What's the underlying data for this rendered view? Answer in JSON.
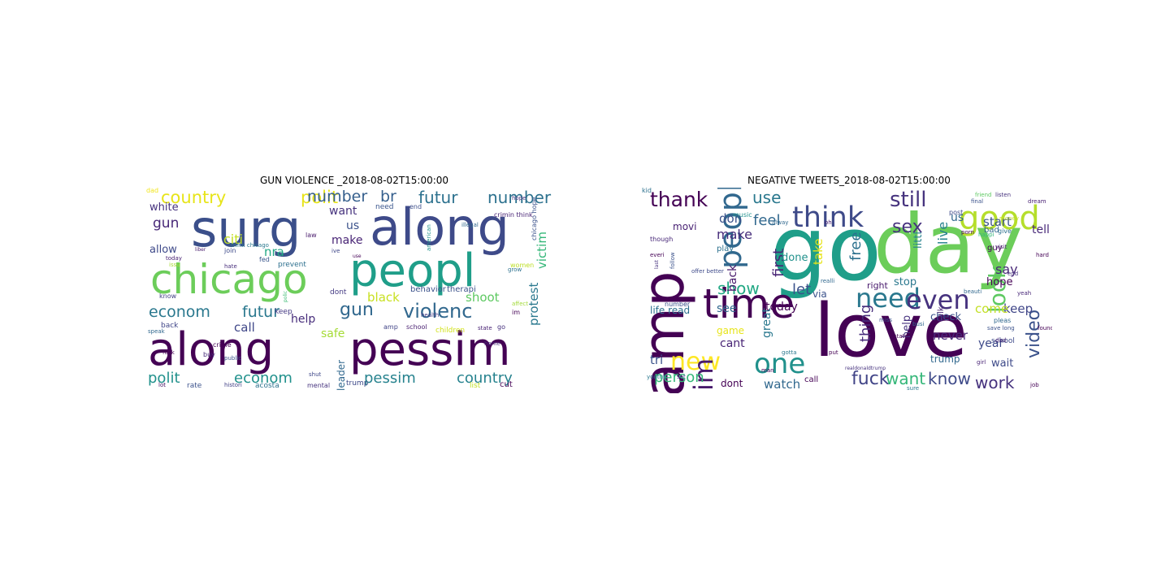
{
  "left": {
    "title": "GUN VIOLENCE _2018-08-02T15:00:00",
    "words": [
      {
        "t": "along",
        "c": "#440154"
      },
      {
        "t": "pessim",
        "c": "#440154"
      },
      {
        "t": "surg",
        "c": "#3b4f8a"
      },
      {
        "t": "along",
        "c": "#3e4a89"
      },
      {
        "t": "chicago",
        "c": "#6ccd5a"
      },
      {
        "t": "peopl",
        "c": "#1f9e89"
      },
      {
        "t": "country",
        "c": "#e7e419"
      },
      {
        "t": "polit",
        "c": "#e7e419"
      },
      {
        "t": "number",
        "c": "#355f8d"
      },
      {
        "t": "br",
        "c": "#355f8d"
      },
      {
        "t": "futur",
        "c": "#2c718e"
      },
      {
        "t": "number",
        "c": "#2c718e"
      },
      {
        "t": "gun",
        "c": "#31688e"
      },
      {
        "t": "violenc",
        "c": "#31688e"
      },
      {
        "t": "econom",
        "c": "#2a788e"
      },
      {
        "t": "futur",
        "c": "#2a788e"
      },
      {
        "t": "polit",
        "c": "#21918c"
      },
      {
        "t": "econom",
        "c": "#21918c"
      },
      {
        "t": "pessim",
        "c": "#26828e"
      },
      {
        "t": "country",
        "c": "#26828e"
      },
      {
        "t": "white",
        "c": "#46327e"
      },
      {
        "t": "gun",
        "c": "#482878"
      },
      {
        "t": "allow",
        "c": "#3e4989"
      },
      {
        "t": "citi",
        "c": "#c2df23"
      },
      {
        "t": "nra",
        "c": "#22a884"
      },
      {
        "t": "want",
        "c": "#46337e"
      },
      {
        "t": "us",
        "c": "#3b528b"
      },
      {
        "t": "make",
        "c": "#482475"
      },
      {
        "t": "black",
        "c": "#c8e020"
      },
      {
        "t": "shoot",
        "c": "#5ec962"
      },
      {
        "t": "call",
        "c": "#3f4788"
      },
      {
        "t": "help",
        "c": "#472d7b"
      },
      {
        "t": "safe",
        "c": "#a5db36"
      },
      {
        "t": "protest",
        "c": "#2a788e"
      },
      {
        "t": "victim",
        "c": "#35b779"
      },
      {
        "t": "leader",
        "c": "#31688e"
      },
      {
        "t": "behavior",
        "c": "#3b528b"
      },
      {
        "t": "therapi",
        "c": "#3b528b"
      },
      {
        "t": "trump",
        "c": "#3e4989"
      },
      {
        "t": "school",
        "c": "#481f70"
      },
      {
        "t": "health",
        "c": "#443983"
      },
      {
        "t": "need",
        "c": "#39558c"
      },
      {
        "t": "american",
        "c": "#21918c"
      },
      {
        "t": "prevent",
        "c": "#2d708e"
      },
      {
        "t": "law",
        "c": "#481a6c"
      },
      {
        "t": "join",
        "c": "#3e4a89"
      },
      {
        "t": "today",
        "c": "#482173"
      },
      {
        "t": "crime",
        "c": "#440154"
      },
      {
        "t": "buy",
        "c": "#472c7a"
      },
      {
        "t": "rate",
        "c": "#3b528b"
      },
      {
        "t": "acosta",
        "c": "#2c728e"
      },
      {
        "t": "mental",
        "c": "#46337e"
      },
      {
        "t": "list",
        "c": "#c0df25"
      },
      {
        "t": "cut",
        "c": "#440154"
      },
      {
        "t": "women",
        "c": "#bddf26"
      },
      {
        "t": "im",
        "c": "#440154"
      },
      {
        "t": "amp",
        "c": "#414487"
      },
      {
        "t": "dont",
        "c": "#443a83"
      },
      {
        "t": "back",
        "c": "#404688"
      },
      {
        "t": "speak",
        "c": "#31688e"
      },
      {
        "t": "fuck",
        "c": "#440154"
      },
      {
        "t": "ive",
        "c": "#3f4788"
      },
      {
        "t": "think chicago",
        "c": "#2a788e"
      },
      {
        "t": "hope",
        "c": "#46327e"
      },
      {
        "t": "chicago hope",
        "c": "#3b528b"
      },
      {
        "t": "fed",
        "c": "#39568c"
      },
      {
        "t": "histori",
        "c": "#424086"
      },
      {
        "t": "home",
        "c": "#482878"
      },
      {
        "t": "keep",
        "c": "#443983"
      },
      {
        "t": "state",
        "c": "#482173"
      },
      {
        "t": "public",
        "c": "#3b528b"
      },
      {
        "t": "go",
        "c": "#46307e"
      },
      {
        "t": "grow",
        "c": "#2c718e"
      },
      {
        "t": "polic",
        "c": "#3dbc74"
      },
      {
        "t": "shut",
        "c": "#3f4889"
      },
      {
        "t": "hate",
        "c": "#472d7b"
      },
      {
        "t": "liber",
        "c": "#481b6d"
      },
      {
        "t": "end",
        "c": "#3d4e8a"
      },
      {
        "t": "illegal",
        "c": "#31688e"
      },
      {
        "t": "crimin think",
        "c": "#482475"
      },
      {
        "t": "lot",
        "c": "#471063"
      },
      {
        "t": "affect",
        "c": "#a2da37"
      },
      {
        "t": "issu",
        "c": "#a8db34"
      },
      {
        "t": "know",
        "c": "#424086"
      },
      {
        "t": "children",
        "c": "#d2e21b"
      },
      {
        "t": "use",
        "c": "#440154"
      },
      {
        "t": "dad",
        "c": "#f1e51d"
      }
    ]
  },
  "right": {
    "title": "NEGATIVE TWEETS_2018-08-02T15:00:00",
    "words": [
      {
        "t": "amp",
        "c": "#440154"
      },
      {
        "t": "go",
        "c": "#1f9e89"
      },
      {
        "t": "day",
        "c": "#6ccd5a"
      },
      {
        "t": "love",
        "c": "#440154"
      },
      {
        "t": "time",
        "c": "#440154"
      },
      {
        "t": "good",
        "c": "#b5de2b"
      },
      {
        "t": "think",
        "c": "#3e4a89"
      },
      {
        "t": "peopl",
        "c": "#31688e"
      },
      {
        "t": "one",
        "c": "#21918c"
      },
      {
        "t": "need",
        "c": "#2a788e"
      },
      {
        "t": "even",
        "c": "#46327e"
      },
      {
        "t": "new",
        "c": "#fde725"
      },
      {
        "t": "im",
        "c": "#481a6c"
      },
      {
        "t": "look",
        "c": "#5ec962"
      },
      {
        "t": "video",
        "c": "#3b528b"
      },
      {
        "t": "fuck",
        "c": "#414487"
      },
      {
        "t": "want",
        "c": "#35b779"
      },
      {
        "t": "know",
        "c": "#3e4a89"
      },
      {
        "t": "work",
        "c": "#46327e"
      },
      {
        "t": "still",
        "c": "#46337e"
      },
      {
        "t": "thank",
        "c": "#440154"
      },
      {
        "t": "use",
        "c": "#2a788e"
      },
      {
        "t": "sex",
        "c": "#46327e"
      },
      {
        "t": "feel",
        "c": "#31688e"
      },
      {
        "t": "let",
        "c": "#3b528b"
      },
      {
        "t": "show",
        "c": "#22a884"
      },
      {
        "t": "first",
        "c": "#482475"
      },
      {
        "t": "back",
        "c": "#481a6c"
      },
      {
        "t": "make",
        "c": "#472d7b"
      },
      {
        "t": "don",
        "c": "#3b528b"
      },
      {
        "t": "take",
        "c": "#e7e419"
      },
      {
        "t": "free",
        "c": "#2c718e"
      },
      {
        "t": "live",
        "c": "#26828e"
      },
      {
        "t": "us",
        "c": "#31688e"
      },
      {
        "t": "start",
        "c": "#3b528b"
      },
      {
        "t": "say",
        "c": "#482878"
      },
      {
        "t": "keep",
        "c": "#404688"
      },
      {
        "t": "come",
        "c": "#c2df23"
      },
      {
        "t": "today",
        "c": "#440154"
      },
      {
        "t": "see",
        "c": "#31688e"
      },
      {
        "t": "thing",
        "c": "#472d7b"
      },
      {
        "t": "person",
        "c": "#35b779"
      },
      {
        "t": "tri",
        "c": "#3b528b"
      },
      {
        "t": "watch",
        "c": "#31688e"
      },
      {
        "t": "dont",
        "c": "#440154"
      },
      {
        "t": "cant",
        "c": "#482475"
      },
      {
        "t": "game",
        "c": "#e7e419"
      },
      {
        "t": "great",
        "c": "#2a788e"
      },
      {
        "t": "life read",
        "c": "#2c718e"
      },
      {
        "t": "year",
        "c": "#3e4a89"
      },
      {
        "t": "never",
        "c": "#482878"
      },
      {
        "t": "check",
        "c": "#3b528b"
      },
      {
        "t": "trump",
        "c": "#31688e"
      },
      {
        "t": "wait",
        "c": "#3e4a89"
      },
      {
        "t": "tell",
        "c": "#482878"
      },
      {
        "t": "hope",
        "c": "#440154"
      },
      {
        "t": "right",
        "c": "#481a6c"
      },
      {
        "t": "stop",
        "c": "#2a788e"
      },
      {
        "t": "help",
        "c": "#46327e"
      },
      {
        "t": "school",
        "c": "#3e4a89"
      },
      {
        "t": "movi",
        "c": "#482173"
      },
      {
        "t": "play",
        "c": "#2c718e"
      },
      {
        "t": "via",
        "c": "#3b528b"
      },
      {
        "t": "done",
        "c": "#21918c"
      },
      {
        "t": "talk",
        "c": "#482475"
      },
      {
        "t": "littl",
        "c": "#26828e"
      },
      {
        "t": "call",
        "c": "#440154"
      },
      {
        "t": "bad",
        "c": "#31688e"
      },
      {
        "t": "guy",
        "c": "#440154"
      },
      {
        "t": "youtub",
        "c": "#2a788e"
      },
      {
        "t": "number",
        "c": "#3b528b"
      },
      {
        "t": "realdonaldtrump",
        "c": "#46327e"
      },
      {
        "t": "tweet",
        "c": "#3e4a89"
      },
      {
        "t": "man",
        "c": "#440154"
      },
      {
        "t": "save long",
        "c": "#3b528b"
      },
      {
        "t": "dad",
        "c": "#482475"
      },
      {
        "t": "found",
        "c": "#440154"
      },
      {
        "t": "give",
        "c": "#2c718e"
      },
      {
        "t": "pleas",
        "c": "#31688e"
      },
      {
        "t": "yeah",
        "c": "#482878"
      },
      {
        "t": "hard",
        "c": "#440154"
      },
      {
        "t": "post",
        "c": "#3e4a89"
      },
      {
        "t": "friend",
        "c": "#5ec962"
      },
      {
        "t": "listen",
        "c": "#46327e"
      },
      {
        "t": "final",
        "c": "#3b528b"
      },
      {
        "t": "dream",
        "c": "#482173"
      },
      {
        "t": "beauti",
        "c": "#31688e"
      },
      {
        "t": "sure",
        "c": "#2a788e"
      },
      {
        "t": "state",
        "c": "#440154"
      },
      {
        "t": "busi",
        "c": "#31688e"
      },
      {
        "t": "visit",
        "c": "#482475"
      },
      {
        "t": "money",
        "c": "#c2df23"
      },
      {
        "t": "last",
        "c": "#46327e"
      },
      {
        "t": "happi",
        "c": "#35b779"
      },
      {
        "t": "porn",
        "c": "#440154"
      },
      {
        "t": "music",
        "c": "#21918c"
      },
      {
        "t": "offer better",
        "c": "#3e4a89"
      },
      {
        "t": "everi",
        "c": "#440154"
      },
      {
        "t": "follow",
        "c": "#3b528b"
      },
      {
        "t": "though",
        "c": "#482878"
      },
      {
        "t": "realli",
        "c": "#31688e"
      },
      {
        "t": "put",
        "c": "#440154"
      },
      {
        "t": "gotta",
        "c": "#2a788e"
      },
      {
        "t": "miss",
        "c": "#3b528b"
      },
      {
        "t": "girl",
        "c": "#482475"
      },
      {
        "t": "job",
        "c": "#440154"
      },
      {
        "t": "end",
        "c": "#46327e"
      },
      {
        "t": "set",
        "c": "#3e4a89"
      },
      {
        "t": "alway",
        "c": "#31688e"
      },
      {
        "t": "oh",
        "c": "#482173"
      },
      {
        "t": "kid",
        "c": "#2c718e"
      }
    ]
  }
}
